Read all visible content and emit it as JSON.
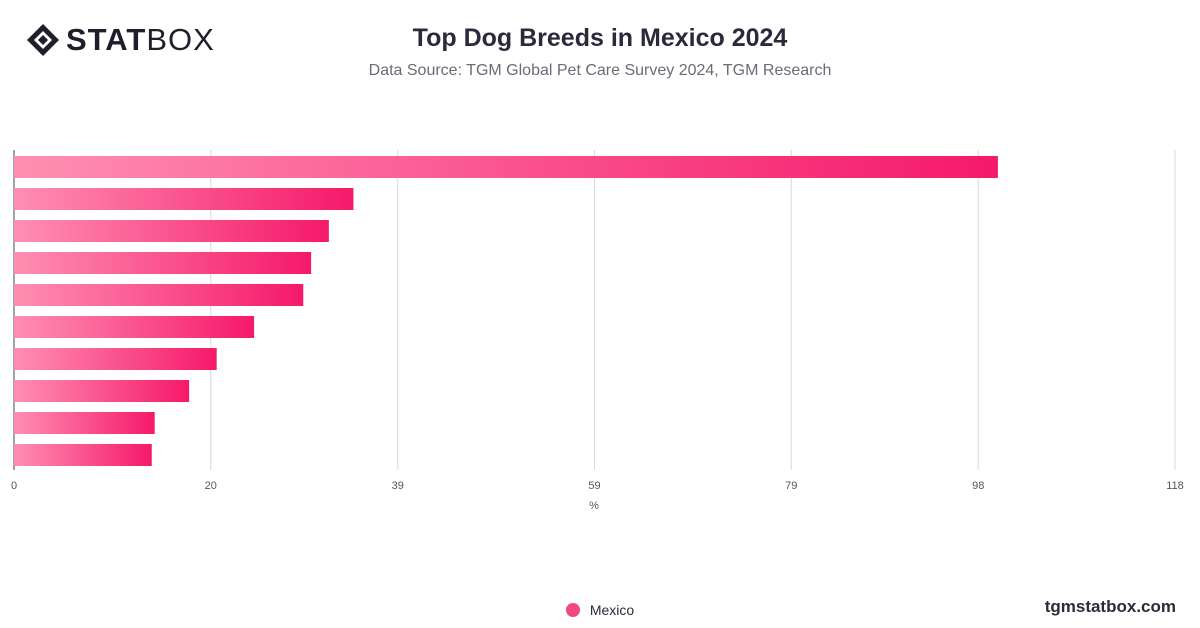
{
  "brand": {
    "stat": "STAT",
    "box": "BOX",
    "site": "tgmstatbox.com"
  },
  "colors": {
    "bar_start": "#ff8fb3",
    "bar_end": "#f5196a",
    "legend_dot": "#f0487f",
    "grid": "#d9d9d9"
  },
  "chart_data": {
    "type": "bar",
    "orientation": "horizontal",
    "title": "Top Dog Breeds in Mexico 2024",
    "subtitle": "Data Source: TGM Global Pet Care Survey 2024, TGM Research",
    "xlabel": "%",
    "ylabel": "",
    "xlim": [
      0,
      118
    ],
    "xticks": [
      0,
      20,
      39,
      59,
      79,
      98,
      118
    ],
    "grid": true,
    "legend_position": "bottom-center",
    "categories": [
      "",
      "",
      "",
      "",
      "",
      "",
      "",
      "",
      "",
      ""
    ],
    "series": [
      {
        "name": "Mexico",
        "values": [
          100,
          34.5,
          32,
          30.2,
          29.4,
          24.4,
          20.6,
          17.8,
          14.3,
          14
        ]
      }
    ]
  }
}
